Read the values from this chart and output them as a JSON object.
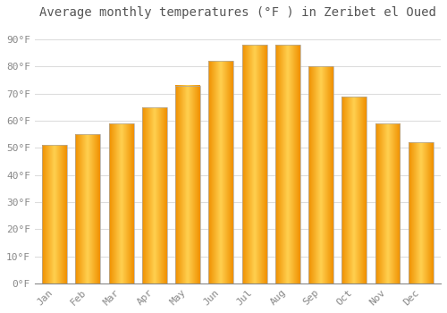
{
  "title": "Average monthly temperatures (°F ) in Zeribet el Oued",
  "months": [
    "Jan",
    "Feb",
    "Mar",
    "Apr",
    "May",
    "Jun",
    "Jul",
    "Aug",
    "Sep",
    "Oct",
    "Nov",
    "Dec"
  ],
  "temperatures": [
    51,
    55,
    59,
    65,
    73,
    82,
    88,
    88,
    80,
    69,
    59,
    52
  ],
  "ylim": [
    0,
    95
  ],
  "yticks": [
    0,
    10,
    20,
    30,
    40,
    50,
    60,
    70,
    80,
    90
  ],
  "ytick_labels": [
    "0°F",
    "10°F",
    "20°F",
    "30°F",
    "40°F",
    "50°F",
    "60°F",
    "70°F",
    "80°F",
    "90°F"
  ],
  "background_color": "#FFFFFF",
  "plot_bg_color": "#FFFFFF",
  "grid_color": "#DDDDDD",
  "bar_color_center": "#FFD050",
  "bar_color_edge": "#F09000",
  "bar_edge_color": "#999999",
  "title_fontsize": 10,
  "tick_fontsize": 8,
  "bar_width": 0.75
}
